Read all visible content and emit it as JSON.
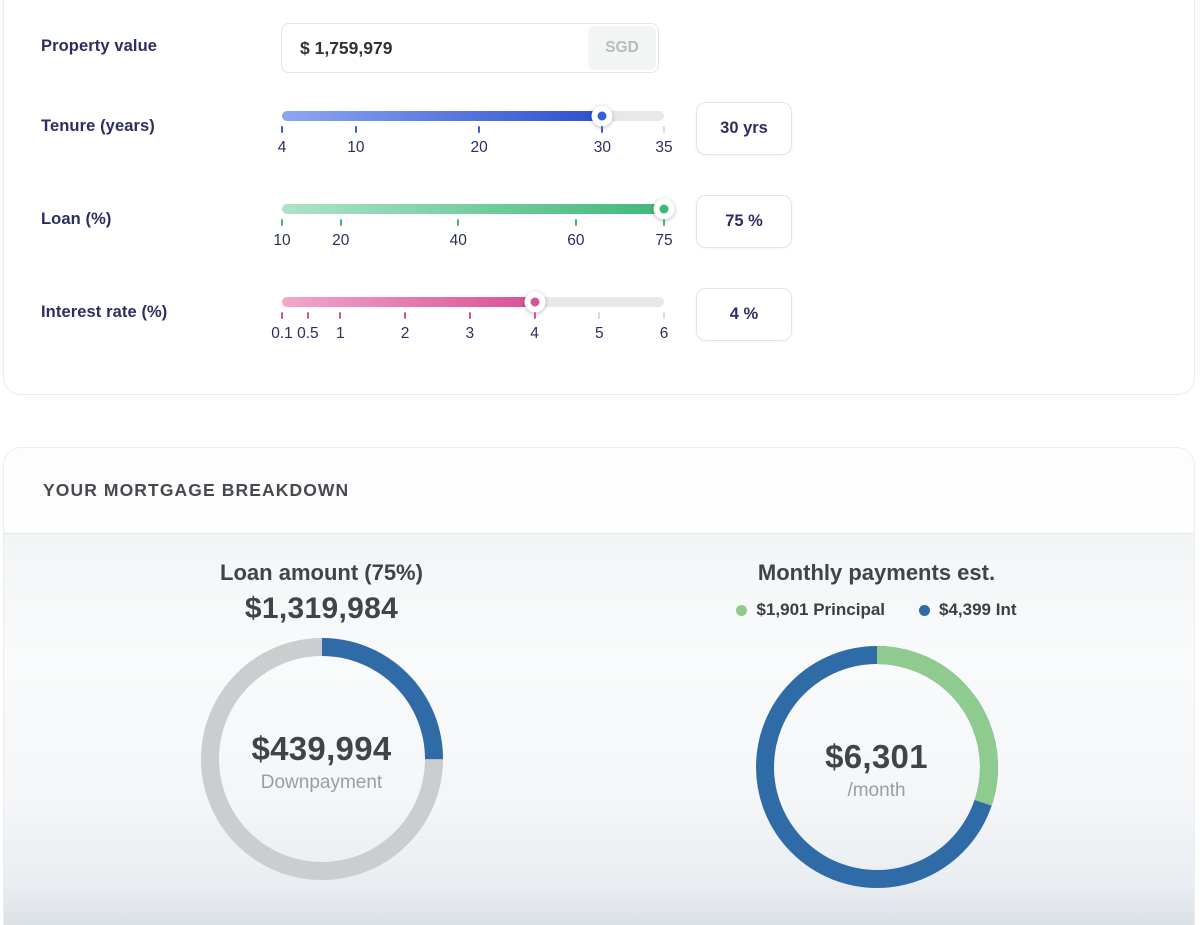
{
  "property": {
    "label": "Property value",
    "value": "$ 1,759,979",
    "currency": "SGD"
  },
  "sliders": [
    {
      "id": "tenure",
      "label": "Tenure (years)",
      "min": 4,
      "max": 35,
      "value": 30,
      "display": "30 yrs",
      "ticks": [
        4,
        10,
        20,
        30,
        35
      ],
      "color_from": "#8da7ef",
      "color_to": "#2b50cf",
      "accent": "#3a5cda"
    },
    {
      "id": "loan",
      "label": "Loan (%)",
      "min": 10,
      "max": 75,
      "value": 75,
      "display": "75 %",
      "ticks": [
        10,
        20,
        40,
        60,
        75
      ],
      "color_from": "#ade3c7",
      "color_to": "#3fb87a",
      "accent": "#3cb878"
    },
    {
      "id": "interest",
      "label": "Interest rate (%)",
      "min": 0.1,
      "max": 6,
      "value": 4,
      "display": "4 %",
      "ticks": [
        0.1,
        0.5,
        1,
        2,
        3,
        4,
        5,
        6
      ],
      "color_from": "#f2a7cc",
      "color_to": "#d94f96",
      "accent": "#d8549a"
    }
  ],
  "breakdown": {
    "title": "YOUR MORTGAGE BREAKDOWN",
    "loan_panel": {
      "heading": "Loan amount (75%)",
      "amount": "$1,319,984",
      "center_value": "$439,994",
      "center_label": "Downpayment",
      "downpayment_value": 439994,
      "loan_value": 1319984,
      "arc_color": "#2f6ba6",
      "ring_color": "#cbcdce"
    },
    "monthly_panel": {
      "heading": "Monthly payments est.",
      "center_value": "$6,301",
      "center_label": "/month",
      "legend": [
        {
          "label": "$1,901 Principal",
          "value": 1901,
          "color": "#8fca8f"
        },
        {
          "label": "$4,399 Int",
          "value": 4399,
          "color": "#2f6ba6"
        }
      ]
    }
  },
  "chart_data": [
    {
      "type": "pie",
      "donut": true,
      "title": "Loan amount (75%)",
      "labels": [
        "Downpayment",
        "Loan amount"
      ],
      "values": [
        439994,
        1319984
      ],
      "colors": [
        "#2f6ba6",
        "#cbcdce"
      ],
      "center_text": "$439,994 Downpayment"
    },
    {
      "type": "pie",
      "donut": true,
      "title": "Monthly payments est.",
      "labels": [
        "Principal",
        "Interest"
      ],
      "values": [
        1901,
        4399
      ],
      "colors": [
        "#8fca8f",
        "#2f6ba6"
      ],
      "center_text": "$6,301 /month"
    }
  ]
}
